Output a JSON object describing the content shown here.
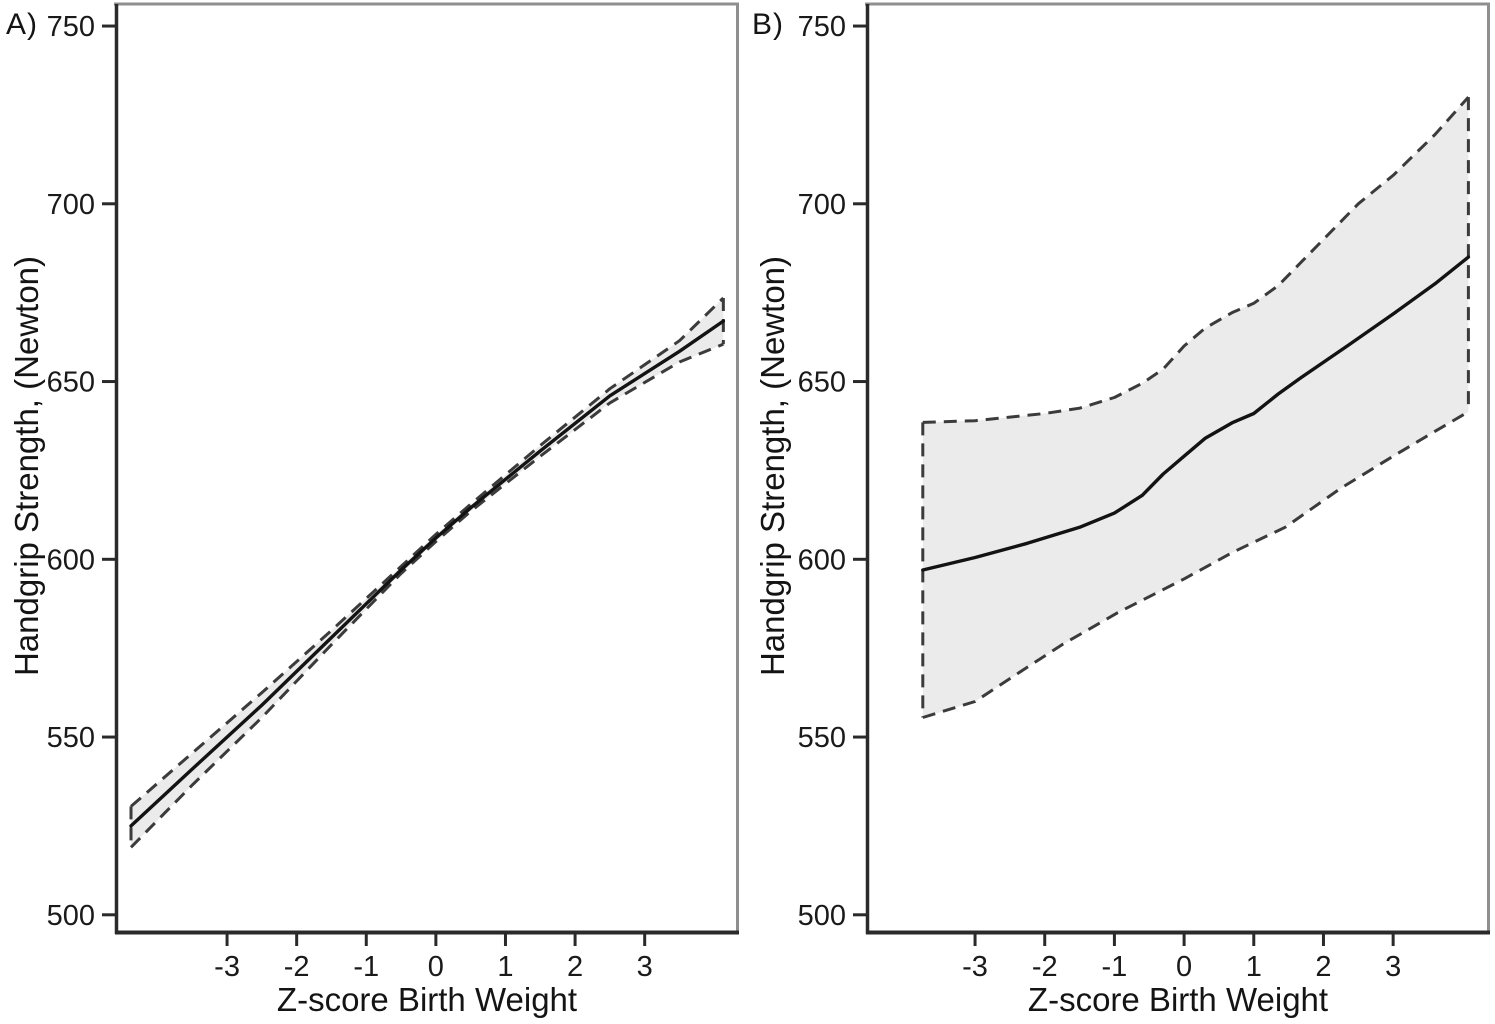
{
  "figure": {
    "background": "#ffffff"
  },
  "chart_data": [
    {
      "type": "line",
      "panel_label": "A)",
      "xlabel": "Z-score Birth Weight",
      "ylabel": "Handgrip Strength, (Newton)",
      "xlim": [
        -4.61,
        4.355
      ],
      "ylim": [
        494.6,
        756.2
      ],
      "xticks": [
        -3,
        -2,
        -1,
        0,
        1,
        2,
        3
      ],
      "yticks": [
        500,
        550,
        600,
        650,
        700,
        750
      ],
      "legend": "none",
      "grid": false,
      "band_color": "#ebebeb",
      "solid_line_color": "#131313",
      "dashed_line_color": "#3b3b3b",
      "axis_color": "#2a2a2a",
      "frame_color": "#8f8f8f",
      "tick_label_color": "#1a1a1a",
      "series": [
        {
          "name": "predicted-mean",
          "style": "solid",
          "x": [
            -4.38,
            -3.5,
            -2.5,
            -1.5,
            -0.5,
            0,
            0.5,
            1.5,
            2.5,
            3.5,
            4.13
          ],
          "y": [
            525,
            541,
            559,
            578,
            597,
            606,
            614.5,
            630.5,
            646,
            658.5,
            667
          ]
        },
        {
          "name": "ci-upper",
          "style": "dashed",
          "x": [
            -4.38,
            -3.5,
            -2.5,
            -1.5,
            -0.5,
            0,
            0.5,
            1.5,
            2.5,
            3.5,
            4.13
          ],
          "y": [
            530.5,
            545.5,
            562.5,
            580,
            598,
            607,
            615.5,
            632,
            648,
            661.5,
            673.5
          ]
        },
        {
          "name": "ci-lower",
          "style": "dashed",
          "x": [
            -4.38,
            -3.5,
            -2.5,
            -1.5,
            -0.5,
            0,
            0.5,
            1.5,
            2.5,
            3.5,
            4.13
          ],
          "y": [
            519,
            536.5,
            555.5,
            576,
            596,
            605,
            613.5,
            629,
            644,
            655.5,
            660.5
          ]
        }
      ]
    },
    {
      "type": "line",
      "panel_label": "B)",
      "xlabel": "Z-score Birth Weight",
      "ylabel": "Handgrip Strength, (Newton)",
      "xlim": [
        -4.565,
        4.39
      ],
      "ylim": [
        494.6,
        756.2
      ],
      "xticks": [
        -3,
        -2,
        -1,
        0,
        1,
        2,
        3
      ],
      "yticks": [
        500,
        550,
        600,
        650,
        700,
        750
      ],
      "legend": "none",
      "grid": false,
      "band_color": "#ebebeb",
      "solid_line_color": "#131313",
      "dashed_line_color": "#3b3b3b",
      "axis_color": "#2a2a2a",
      "frame_color": "#8f8f8f",
      "tick_label_color": "#1a1a1a",
      "series": [
        {
          "name": "predicted-mean",
          "style": "solid",
          "x": [
            -3.75,
            -3,
            -2.25,
            -1.5,
            -1,
            -0.6,
            -0.3,
            0,
            0.3,
            0.7,
            1,
            1.35,
            1.67,
            2.34,
            3,
            3.6,
            4.08
          ],
          "y": [
            597,
            600.5,
            604.5,
            609,
            613,
            618,
            624,
            629,
            634,
            638.5,
            641,
            646.5,
            651,
            660,
            669,
            677.5,
            685
          ]
        },
        {
          "name": "ci-upper",
          "style": "dashed",
          "x": [
            -3.75,
            -3,
            -2.5,
            -2,
            -1.5,
            -1,
            -0.6,
            -0.3,
            0,
            0.3,
            0.7,
            1,
            1.35,
            1.7,
            2.5,
            3,
            3.6,
            4.08
          ],
          "y": [
            638.5,
            639,
            640,
            641,
            642.5,
            645.5,
            649.5,
            653.5,
            660,
            665,
            669.5,
            672,
            677,
            684,
            700,
            708,
            719.5,
            730
          ]
        },
        {
          "name": "ci-lower",
          "style": "dashed",
          "x": [
            -3.75,
            -3,
            -2.3,
            -1.75,
            -0.95,
            -0.4,
            0,
            0.7,
            1.45,
            2.25,
            3,
            3.6,
            4.08
          ],
          "y": [
            555.5,
            560,
            569,
            576,
            585,
            590.5,
            594.5,
            602,
            609,
            620,
            629,
            636,
            641.5
          ]
        }
      ]
    }
  ]
}
